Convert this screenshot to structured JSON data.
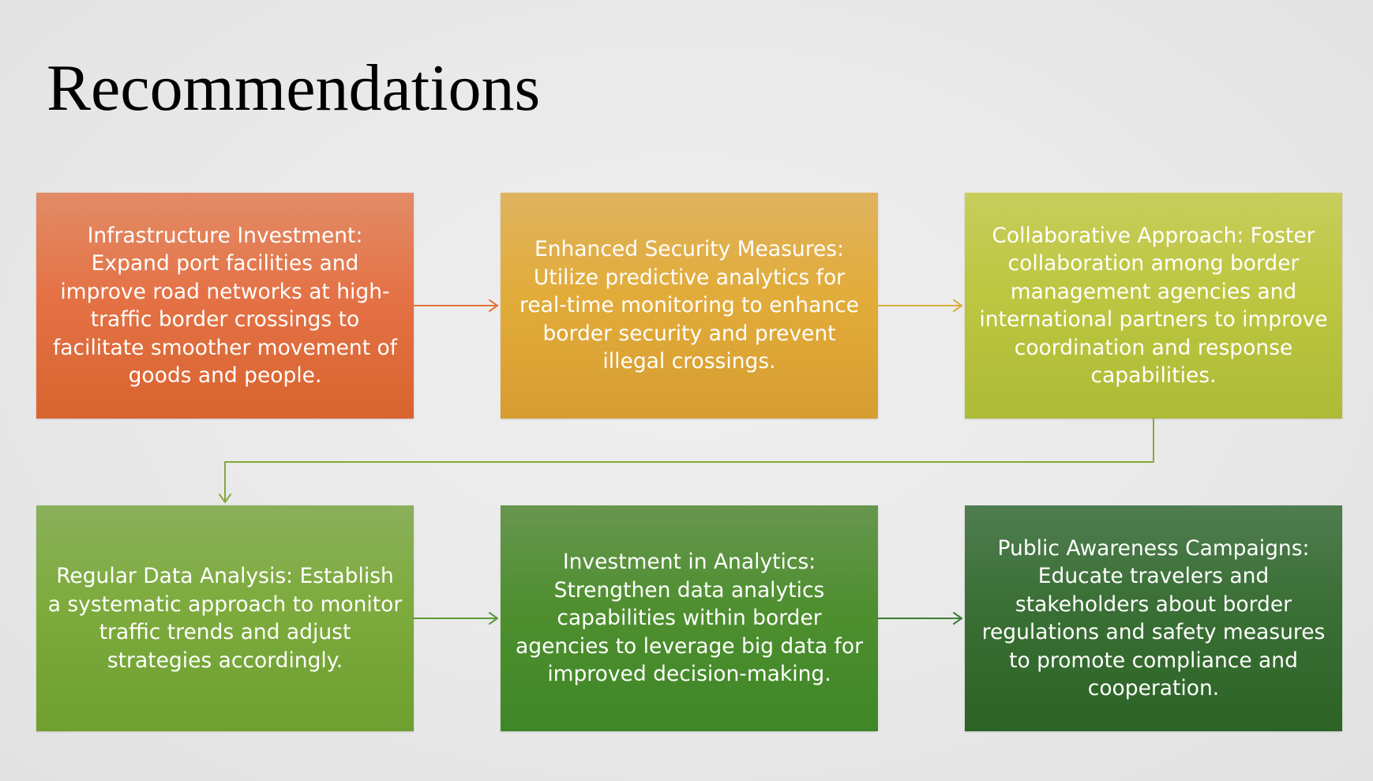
{
  "title": "Recommendations",
  "steps": [
    {
      "text": "Infrastructure Investment: Expand port facilities and improve road networks at high-traffic border crossings to facilitate smoother movement of goods and people."
    },
    {
      "text": "Enhanced Security Measures: Utilize predictive analytics for real-time monitoring to enhance border security and prevent illegal crossings."
    },
    {
      "text": "Collaborative Approach: Foster collaboration among border management agencies and international partners to improve coordination and response capabilities."
    },
    {
      "text": "Regular Data Analysis: Establish a systematic approach to monitor traffic trends and adjust strategies accordingly."
    },
    {
      "text": "Investment in Analytics: Strengthen data analytics capabilities within border agencies to leverage big data for improved decision-making."
    },
    {
      "text": "Public Awareness Campaigns: Educate travelers and stakeholders about border regulations and safety measures to promote compliance and cooperation."
    }
  ],
  "colors": {
    "step1": "#e47246",
    "step2": "#e2ac3a",
    "step3": "#bdc640",
    "step4": "#7dab3d",
    "step5": "#4f8f30",
    "step6": "#3a6f35",
    "arrow1": "#e0743f",
    "arrow2": "#d8ae3c",
    "arrow3": "#86a83a",
    "arrow4": "#5c9a3a",
    "arrow5": "#3f7d35"
  }
}
